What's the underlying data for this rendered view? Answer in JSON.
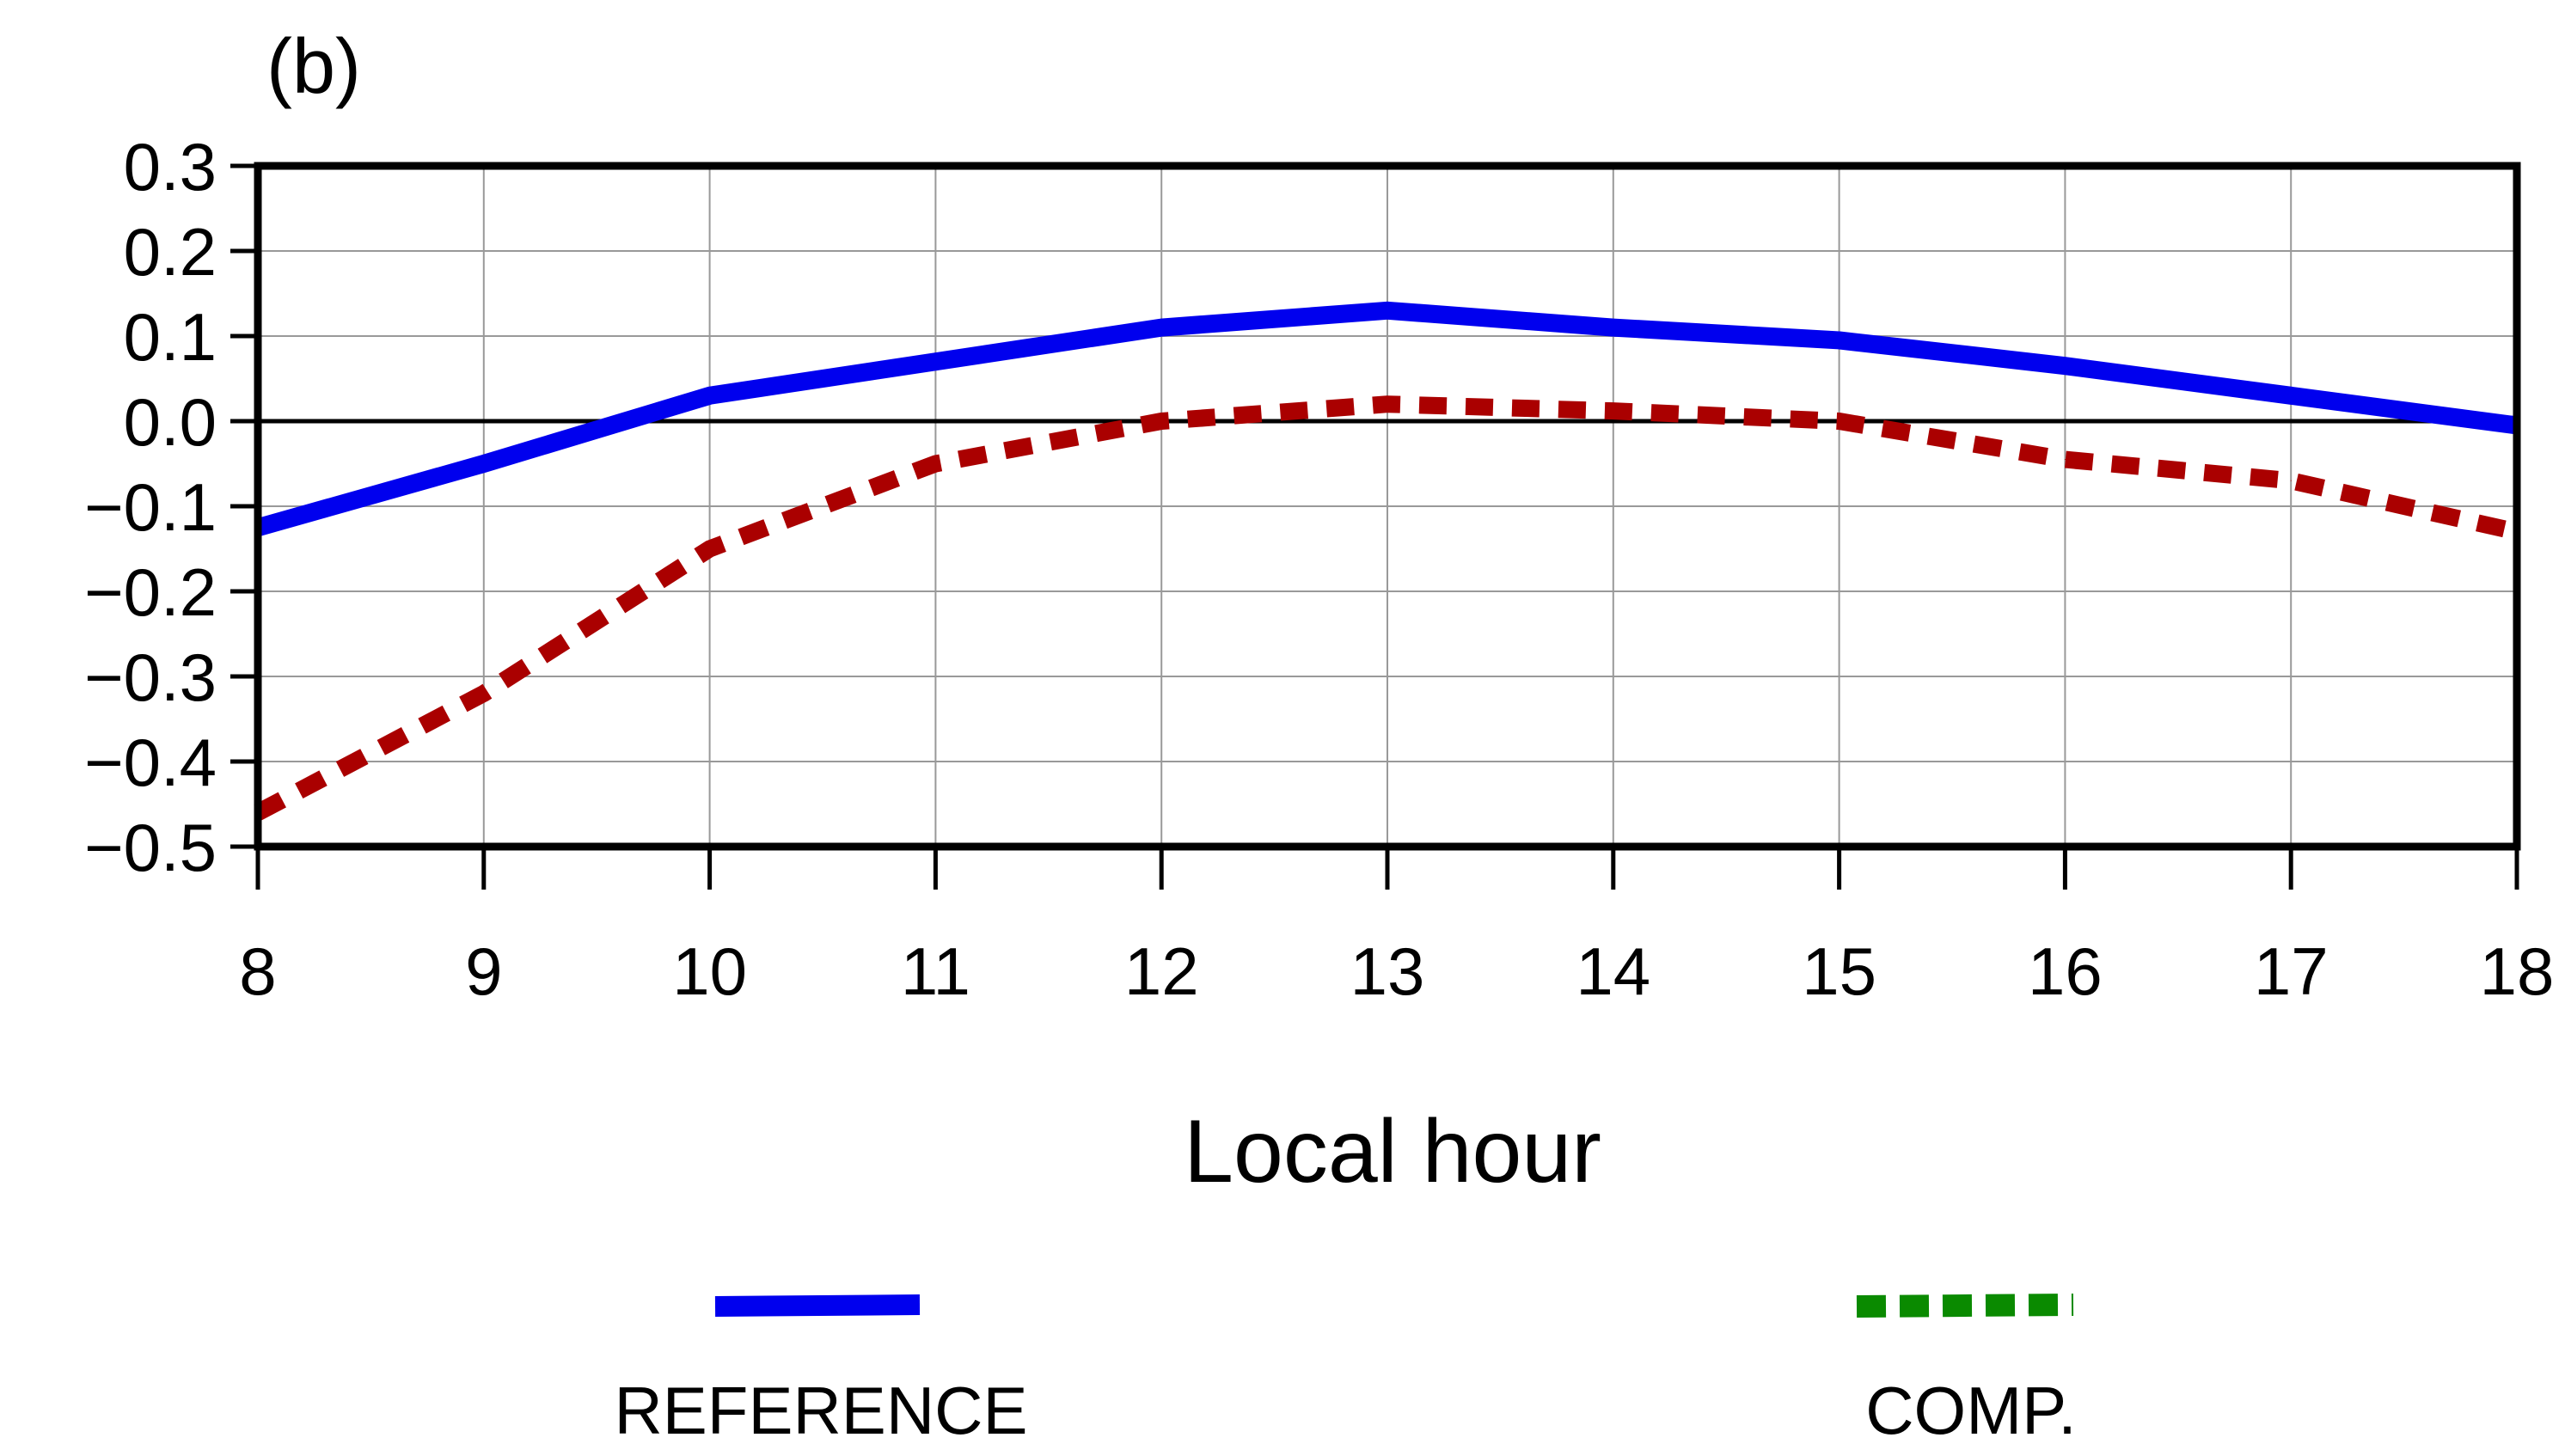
{
  "chart_data": {
    "type": "line",
    "panel_label": "(b)",
    "xlabel": "Local hour",
    "ylabel": "",
    "x": [
      8,
      9,
      10,
      11,
      12,
      13,
      14,
      15,
      16,
      17,
      18
    ],
    "x_tick_labels": [
      "8",
      "9",
      "10",
      "11",
      "12",
      "13",
      "14",
      "15",
      "16",
      "17",
      "18"
    ],
    "xlim": [
      8,
      18
    ],
    "ylim": [
      -0.5,
      0.3
    ],
    "y_ticks": [
      0.3,
      0.2,
      0.1,
      0.0,
      -0.1,
      -0.2,
      -0.3,
      -0.4,
      -0.5
    ],
    "y_tick_labels": [
      "0.3",
      "0.2",
      "0.1",
      "0.0",
      "−0.1",
      "−0.2",
      "−0.3",
      "−0.4",
      "−0.5"
    ],
    "grid": true,
    "zero_line": true,
    "series": [
      {
        "legend_label": "REFERENCE",
        "color": "#0000ee",
        "style": "solid",
        "values": [
          -0.125,
          -0.05,
          0.03,
          0.07,
          0.11,
          0.13,
          0.11,
          0.095,
          0.065,
          0.03,
          -0.005
        ]
      },
      {
        "legend_label": "COMP.",
        "color": "#aa0000",
        "legend_color": "#0a8a00",
        "style": "dotted",
        "values": [
          -0.46,
          -0.32,
          -0.15,
          -0.05,
          0.0,
          0.02,
          0.012,
          0.0,
          -0.045,
          -0.07,
          -0.13
        ]
      }
    ],
    "legend_placement": "bottom"
  }
}
